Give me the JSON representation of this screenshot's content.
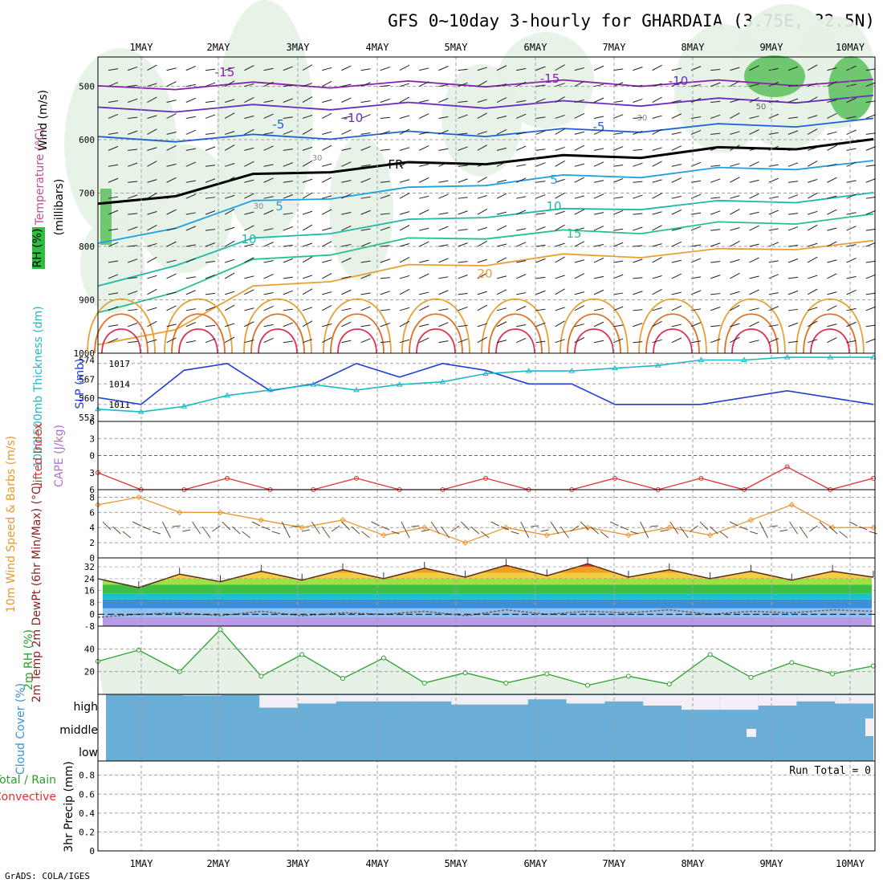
{
  "title": "GFS 0~10day 3-hourly for GHARDAIA (3.75E, 32.5N)",
  "footer": "GrADS: COLA/IGES",
  "colors": {
    "rh_fill": "#2fbf3f",
    "t_neg_15": "#8a1fb0",
    "t_neg_10": "#6a2cc0",
    "t_neg_5": "#1f5fd6",
    "t_fr": "#000000",
    "t_5": "#1fa0e0",
    "t_10": "#1fb8a8",
    "t_15": "#25c08a",
    "t_20": "#e8a030",
    "t_25": "#e07020",
    "t_30": "#e03050",
    "slp": "#1f3fd0",
    "thick": "#20b8c8",
    "li": "#e03030",
    "wind": "#e89830",
    "cloud": "#6aaed6",
    "rh2m": "#2aa02a",
    "grid": "#a0a0a0"
  },
  "x_labels": [
    "1MAY",
    "2MAY",
    "3MAY",
    "4MAY",
    "5MAY",
    "6MAY",
    "7MAY",
    "8MAY",
    "9MAY",
    "10MAY"
  ],
  "chart_data": [
    {
      "type": "contour",
      "id": "upper-air",
      "ylabel": "(millibars)",
      "axis_labels": [
        "Wind (m/s)",
        "Temperature (°C)",
        "RH (%)"
      ],
      "yticks": [
        500,
        600,
        700,
        800,
        900,
        1000
      ],
      "ylim": [
        1000,
        445
      ],
      "contour_labels": [
        "-15",
        "-15",
        "-10",
        "-10",
        "-5",
        "-5",
        "FR",
        "5",
        "5",
        "10",
        "10",
        "15",
        "20",
        "50",
        "30",
        "30",
        "30"
      ],
      "isotherms": [
        {
          "label": "-15",
          "p": [
            505,
            500,
            498,
            497,
            496,
            495,
            494,
            494,
            494,
            493,
            493
          ]
        },
        {
          "label": "-10",
          "p": [
            545,
            542,
            540,
            538,
            536,
            535,
            533,
            531,
            528,
            525,
            523
          ]
        },
        {
          "label": "-5",
          "p": [
            600,
            598,
            596,
            593,
            590,
            588,
            585,
            580,
            576,
            570,
            566
          ]
        },
        {
          "label": "FR",
          "p": [
            726,
            700,
            670,
            655,
            648,
            640,
            635,
            628,
            620,
            612,
            605
          ]
        },
        {
          "label": "5",
          "p": [
            800,
            760,
            720,
            705,
            695,
            680,
            672,
            665,
            658,
            650,
            645
          ]
        },
        {
          "label": "10",
          "p": [
            880,
            830,
            790,
            770,
            755,
            740,
            735,
            725,
            720,
            712,
            705
          ]
        },
        {
          "label": "15",
          "p": [
            930,
            880,
            830,
            810,
            790,
            780,
            775,
            770,
            760,
            752,
            745
          ]
        },
        {
          "label": "20",
          "p": [
            990,
            950,
            880,
            860,
            840,
            830,
            820,
            815,
            810,
            800,
            795
          ]
        }
      ]
    },
    {
      "type": "line",
      "id": "slp-thickness",
      "ylabel": "SLP (mb)",
      "ylabel2": "1000-500mb Thickness (dm)",
      "yticks_left": [
        553,
        560,
        567,
        574
      ],
      "yticks_right": [
        1011,
        1014,
        1017
      ],
      "series": [
        {
          "name": "SLP",
          "values": [
            1012,
            1011,
            1016,
            1017,
            1013,
            1014,
            1017,
            1015,
            1017,
            1016,
            1014,
            1014,
            1011,
            1011,
            1011,
            1012,
            1013,
            1012,
            1011
          ]
        },
        {
          "name": "Thickness",
          "values": [
            556,
            555,
            557,
            561,
            563,
            565,
            563,
            565,
            566,
            569,
            570,
            570,
            571,
            572,
            574,
            574,
            575,
            575,
            575
          ]
        }
      ]
    },
    {
      "type": "line",
      "id": "cape-li",
      "ylabel": "Lifted Index",
      "ylabel2": "CAPE (J/kg)",
      "yticks": [
        -6,
        -3,
        0,
        3,
        6
      ],
      "ylim": [
        -6,
        6
      ],
      "series": [
        {
          "name": "Lifted Index",
          "values": [
            3,
            6,
            6,
            4,
            6,
            6,
            4,
            6,
            6,
            4,
            6,
            6,
            4,
            6,
            4,
            6,
            2,
            6,
            4
          ]
        }
      ]
    },
    {
      "type": "line",
      "id": "wind10m",
      "ylabel": "10m Wind Speed & Barbs (m/s)",
      "yticks": [
        0,
        2,
        4,
        6,
        8
      ],
      "ylim": [
        0,
        9
      ],
      "series": [
        {
          "name": "Wind Speed",
          "values": [
            7,
            8,
            6,
            6,
            5,
            4,
            5,
            3,
            4,
            2,
            4,
            3,
            4,
            3,
            4,
            3,
            5,
            7,
            4,
            4
          ]
        }
      ]
    },
    {
      "type": "area",
      "id": "temp2m",
      "ylabel": "2m Temp 2m DewPt (6hr Min/Max) (°C)",
      "yticks": [
        -8,
        0,
        8,
        16,
        24,
        32
      ],
      "ylim": [
        -8,
        38
      ],
      "series": [
        {
          "name": "2m Temp",
          "values": [
            24,
            18,
            27,
            22,
            29,
            23,
            30,
            24,
            31,
            25,
            33,
            26,
            34,
            25,
            30,
            24,
            29,
            23,
            29,
            25
          ]
        },
        {
          "name": "2m DewPt",
          "values": [
            -2,
            0,
            1,
            -1,
            2,
            -1,
            1,
            0,
            2,
            -1,
            3,
            0,
            2,
            1,
            3,
            0,
            2,
            1,
            3,
            2
          ]
        }
      ]
    },
    {
      "type": "area",
      "id": "rh2m",
      "ylabel": "2m RH (%)",
      "yticks": [
        20,
        40
      ],
      "ylim": [
        0,
        60
      ],
      "series": [
        {
          "name": "2m RH",
          "values": [
            29,
            39,
            20,
            57,
            16,
            35,
            14,
            32,
            10,
            19,
            10,
            18,
            8,
            16,
            9,
            35,
            15,
            28,
            18,
            25
          ]
        }
      ]
    },
    {
      "type": "bar",
      "id": "cloud-cover",
      "ylabel": "Cloud Cover (%)",
      "levels": [
        "high",
        "middle",
        "low"
      ],
      "high_cover": [
        100,
        100,
        98,
        100,
        40,
        60,
        70,
        70,
        70,
        55,
        55,
        80,
        60,
        70,
        50,
        30,
        30,
        50,
        70,
        60
      ]
    },
    {
      "type": "bar",
      "id": "precip",
      "ylabel": "3hr Precip (mm)",
      "legend": [
        "Total / Rain",
        "Convective"
      ],
      "run_total": "Run Total = 0",
      "yticks": [
        0,
        0.2,
        0.4,
        0.6,
        0.8
      ],
      "ylim": [
        0,
        0.95
      ],
      "values": []
    }
  ]
}
